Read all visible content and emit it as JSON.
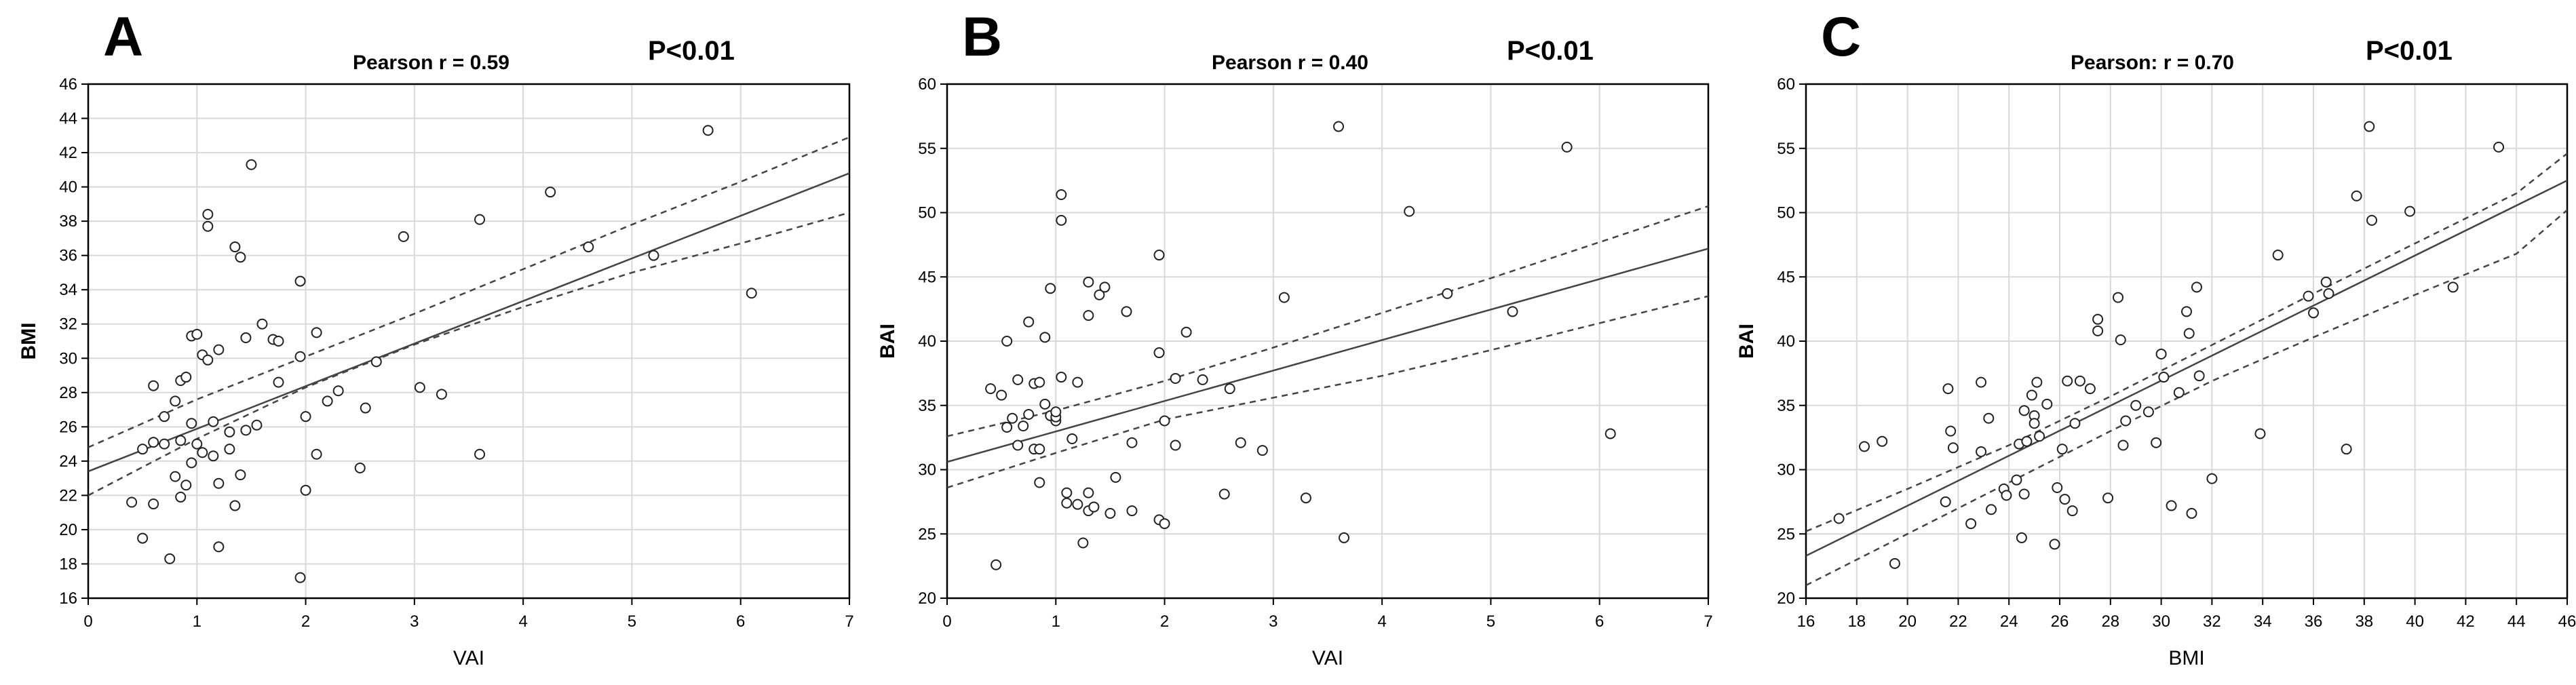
{
  "chart_data": [
    {
      "type": "scatter",
      "panel_letter": "A",
      "title": "Pearson r = 0.59",
      "pvalue": "P<0.01",
      "xlabel": "VAI",
      "ylabel": "BMI",
      "xlim": [
        0,
        7
      ],
      "ylim": [
        16,
        46
      ],
      "xticks": [
        0,
        1,
        2,
        3,
        4,
        5,
        6,
        7
      ],
      "yticks": [
        16,
        18,
        20,
        22,
        24,
        26,
        28,
        30,
        32,
        34,
        36,
        38,
        40,
        42,
        44,
        46
      ],
      "regression": {
        "x": [
          0,
          7
        ],
        "y": [
          23.4,
          40.8
        ]
      },
      "ci_upper": {
        "x": [
          0,
          1,
          2,
          3,
          4,
          5,
          6,
          7
        ],
        "y": [
          24.8,
          27.6,
          30.1,
          32.6,
          35.2,
          37.8,
          40.3,
          42.9
        ]
      },
      "ci_lower": {
        "x": [
          0,
          1,
          2,
          3,
          4,
          5,
          6,
          7
        ],
        "y": [
          22.0,
          25.3,
          28.3,
          30.8,
          33.0,
          35.0,
          36.7,
          38.5
        ]
      },
      "points": [
        [
          0.4,
          21.6
        ],
        [
          0.5,
          19.5
        ],
        [
          0.5,
          24.7
        ],
        [
          0.6,
          28.4
        ],
        [
          0.6,
          21.5
        ],
        [
          0.6,
          25.1
        ],
        [
          0.7,
          25.0
        ],
        [
          0.7,
          26.6
        ],
        [
          0.75,
          18.3
        ],
        [
          0.8,
          23.1
        ],
        [
          0.8,
          27.5
        ],
        [
          0.85,
          21.9
        ],
        [
          0.85,
          25.2
        ],
        [
          0.85,
          28.7
        ],
        [
          0.9,
          22.6
        ],
        [
          0.9,
          28.9
        ],
        [
          0.95,
          23.9
        ],
        [
          0.95,
          26.2
        ],
        [
          0.95,
          31.3
        ],
        [
          1.0,
          31.4
        ],
        [
          1.0,
          25.0
        ],
        [
          1.05,
          30.2
        ],
        [
          1.05,
          24.5
        ],
        [
          1.1,
          38.4
        ],
        [
          1.1,
          37.7
        ],
        [
          1.1,
          29.9
        ],
        [
          1.15,
          24.3
        ],
        [
          1.15,
          26.3
        ],
        [
          1.2,
          30.5
        ],
        [
          1.2,
          22.7
        ],
        [
          1.2,
          19.0
        ],
        [
          1.3,
          25.7
        ],
        [
          1.3,
          24.7
        ],
        [
          1.35,
          21.4
        ],
        [
          1.35,
          36.5
        ],
        [
          1.4,
          35.9
        ],
        [
          1.4,
          23.2
        ],
        [
          1.45,
          25.8
        ],
        [
          1.45,
          31.2
        ],
        [
          1.5,
          41.3
        ],
        [
          1.55,
          26.1
        ],
        [
          1.6,
          32.0
        ],
        [
          1.7,
          31.1
        ],
        [
          1.75,
          31.0
        ],
        [
          1.75,
          28.6
        ],
        [
          1.95,
          34.5
        ],
        [
          1.95,
          30.1
        ],
        [
          1.95,
          17.2
        ],
        [
          2.0,
          26.6
        ],
        [
          2.0,
          22.3
        ],
        [
          2.1,
          31.5
        ],
        [
          2.1,
          24.4
        ],
        [
          2.2,
          27.5
        ],
        [
          2.3,
          28.1
        ],
        [
          2.5,
          23.6
        ],
        [
          2.55,
          27.1
        ],
        [
          2.65,
          29.8
        ],
        [
          2.9,
          37.1
        ],
        [
          3.05,
          28.3
        ],
        [
          3.25,
          27.9
        ],
        [
          3.6,
          38.1
        ],
        [
          3.6,
          24.4
        ],
        [
          4.25,
          39.7
        ],
        [
          4.6,
          36.5
        ],
        [
          5.2,
          36.0
        ],
        [
          5.7,
          43.3
        ],
        [
          6.1,
          33.8
        ]
      ]
    },
    {
      "type": "scatter",
      "panel_letter": "B",
      "title": "Pearson r = 0.40",
      "pvalue": "P<0.01",
      "xlabel": "VAI",
      "ylabel": "BAI",
      "xlim": [
        0,
        7
      ],
      "ylim": [
        20,
        60
      ],
      "xticks": [
        0,
        1,
        2,
        3,
        4,
        5,
        6,
        7
      ],
      "yticks": [
        20,
        25,
        30,
        35,
        40,
        45,
        50,
        55,
        60
      ],
      "regression": {
        "x": [
          0,
          7
        ],
        "y": [
          30.6,
          47.2
        ]
      },
      "ci_upper": {
        "x": [
          0,
          1,
          2,
          3,
          4,
          5,
          6,
          7
        ],
        "y": [
          32.6,
          34.6,
          36.9,
          39.5,
          42.2,
          44.9,
          47.7,
          50.5
        ]
      },
      "ci_lower": {
        "x": [
          0,
          1,
          2,
          3,
          4,
          5,
          6,
          7
        ],
        "y": [
          28.6,
          31.3,
          33.9,
          35.6,
          37.3,
          39.3,
          41.4,
          43.5
        ]
      },
      "points": [
        [
          0.4,
          36.3
        ],
        [
          0.45,
          22.6
        ],
        [
          0.5,
          35.8
        ],
        [
          0.55,
          40.0
        ],
        [
          0.55,
          33.3
        ],
        [
          0.6,
          34.0
        ],
        [
          0.65,
          37.0
        ],
        [
          0.65,
          31.9
        ],
        [
          0.7,
          33.4
        ],
        [
          0.75,
          41.5
        ],
        [
          0.75,
          34.3
        ],
        [
          0.8,
          36.7
        ],
        [
          0.8,
          31.6
        ],
        [
          0.85,
          31.6
        ],
        [
          0.85,
          36.8
        ],
        [
          0.85,
          29.0
        ],
        [
          0.9,
          35.1
        ],
        [
          0.9,
          40.3
        ],
        [
          0.95,
          34.2
        ],
        [
          0.95,
          44.1
        ],
        [
          1.0,
          33.8
        ],
        [
          1.0,
          34.1
        ],
        [
          1.0,
          34.5
        ],
        [
          1.05,
          51.4
        ],
        [
          1.05,
          49.4
        ],
        [
          1.05,
          37.2
        ],
        [
          1.1,
          28.2
        ],
        [
          1.1,
          27.4
        ],
        [
          1.15,
          32.4
        ],
        [
          1.2,
          36.8
        ],
        [
          1.2,
          27.3
        ],
        [
          1.25,
          24.3
        ],
        [
          1.3,
          42.0
        ],
        [
          1.3,
          44.6
        ],
        [
          1.3,
          28.2
        ],
        [
          1.3,
          26.8
        ],
        [
          1.35,
          27.1
        ],
        [
          1.4,
          43.6
        ],
        [
          1.45,
          44.2
        ],
        [
          1.5,
          26.6
        ],
        [
          1.55,
          29.4
        ],
        [
          1.65,
          42.3
        ],
        [
          1.7,
          32.1
        ],
        [
          1.7,
          26.8
        ],
        [
          1.95,
          46.7
        ],
        [
          1.95,
          39.1
        ],
        [
          1.95,
          26.1
        ],
        [
          2.0,
          25.8
        ],
        [
          2.0,
          33.8
        ],
        [
          2.1,
          37.1
        ],
        [
          2.1,
          31.9
        ],
        [
          2.2,
          40.7
        ],
        [
          2.35,
          37.0
        ],
        [
          2.55,
          28.1
        ],
        [
          2.6,
          36.3
        ],
        [
          2.7,
          32.1
        ],
        [
          2.9,
          31.5
        ],
        [
          3.1,
          43.4
        ],
        [
          3.3,
          27.8
        ],
        [
          3.6,
          56.7
        ],
        [
          3.65,
          24.7
        ],
        [
          4.25,
          50.1
        ],
        [
          4.6,
          43.7
        ],
        [
          5.2,
          42.3
        ],
        [
          5.7,
          55.1
        ],
        [
          6.1,
          32.8
        ]
      ]
    },
    {
      "type": "scatter",
      "panel_letter": "C",
      "title": "Pearson: r = 0.70",
      "pvalue": "P<0.01",
      "xlabel": "BMI",
      "ylabel": "BAI",
      "xlim": [
        16,
        46
      ],
      "ylim": [
        20,
        60
      ],
      "xticks": [
        16,
        18,
        20,
        22,
        24,
        26,
        28,
        30,
        32,
        34,
        36,
        38,
        40,
        42,
        44,
        46
      ],
      "yticks": [
        20,
        25,
        30,
        35,
        40,
        45,
        50,
        55,
        60
      ],
      "regression": {
        "x": [
          16,
          46
        ],
        "y": [
          23.3,
          52.5
        ]
      },
      "ci_upper": {
        "x": [
          16,
          20,
          24,
          28,
          32,
          36,
          40,
          44,
          46
        ],
        "y": [
          25.2,
          28.5,
          31.9,
          35.7,
          39.7,
          43.7,
          47.6,
          51.5,
          54.6
        ]
      },
      "ci_lower": {
        "x": [
          16,
          20,
          24,
          28,
          32,
          36,
          40,
          44,
          46
        ],
        "y": [
          21.0,
          25.0,
          29.0,
          33.0,
          36.9,
          40.3,
          43.6,
          46.8,
          50.2
        ]
      },
      "points": [
        [
          17.3,
          26.2
        ],
        [
          18.3,
          31.8
        ],
        [
          19.0,
          32.2
        ],
        [
          19.5,
          22.7
        ],
        [
          21.5,
          27.5
        ],
        [
          21.6,
          36.3
        ],
        [
          21.7,
          33.0
        ],
        [
          21.8,
          31.7
        ],
        [
          22.5,
          25.8
        ],
        [
          22.9,
          31.4
        ],
        [
          22.9,
          36.8
        ],
        [
          23.2,
          34.0
        ],
        [
          23.3,
          26.9
        ],
        [
          23.8,
          28.5
        ],
        [
          23.9,
          28.0
        ],
        [
          24.3,
          29.2
        ],
        [
          24.4,
          32.0
        ],
        [
          24.5,
          24.7
        ],
        [
          24.6,
          28.1
        ],
        [
          24.6,
          34.6
        ],
        [
          24.7,
          32.2
        ],
        [
          24.9,
          35.8
        ],
        [
          25.0,
          34.2
        ],
        [
          25.0,
          33.6
        ],
        [
          25.1,
          36.8
        ],
        [
          25.2,
          32.6
        ],
        [
          25.5,
          35.1
        ],
        [
          25.8,
          24.2
        ],
        [
          25.9,
          28.6
        ],
        [
          26.1,
          31.6
        ],
        [
          26.2,
          27.7
        ],
        [
          26.3,
          36.9
        ],
        [
          26.5,
          26.8
        ],
        [
          26.6,
          33.6
        ],
        [
          26.8,
          36.9
        ],
        [
          27.2,
          36.3
        ],
        [
          27.5,
          40.8
        ],
        [
          27.5,
          41.7
        ],
        [
          27.9,
          27.8
        ],
        [
          28.3,
          43.4
        ],
        [
          28.4,
          40.1
        ],
        [
          28.5,
          31.9
        ],
        [
          28.6,
          33.8
        ],
        [
          29.0,
          35.0
        ],
        [
          29.5,
          34.5
        ],
        [
          29.8,
          32.1
        ],
        [
          30.0,
          39.0
        ],
        [
          30.1,
          37.2
        ],
        [
          30.4,
          27.2
        ],
        [
          30.7,
          36.0
        ],
        [
          31.0,
          42.3
        ],
        [
          31.1,
          40.6
        ],
        [
          31.2,
          26.6
        ],
        [
          31.4,
          44.2
        ],
        [
          31.5,
          37.3
        ],
        [
          32.0,
          29.3
        ],
        [
          33.9,
          32.8
        ],
        [
          34.6,
          46.7
        ],
        [
          35.8,
          43.5
        ],
        [
          36.0,
          42.2
        ],
        [
          36.5,
          44.6
        ],
        [
          36.6,
          43.7
        ],
        [
          37.3,
          31.6
        ],
        [
          37.7,
          51.3
        ],
        [
          38.2,
          56.7
        ],
        [
          38.3,
          49.4
        ],
        [
          39.8,
          50.1
        ],
        [
          41.5,
          44.2
        ],
        [
          43.3,
          55.1
        ]
      ]
    }
  ]
}
